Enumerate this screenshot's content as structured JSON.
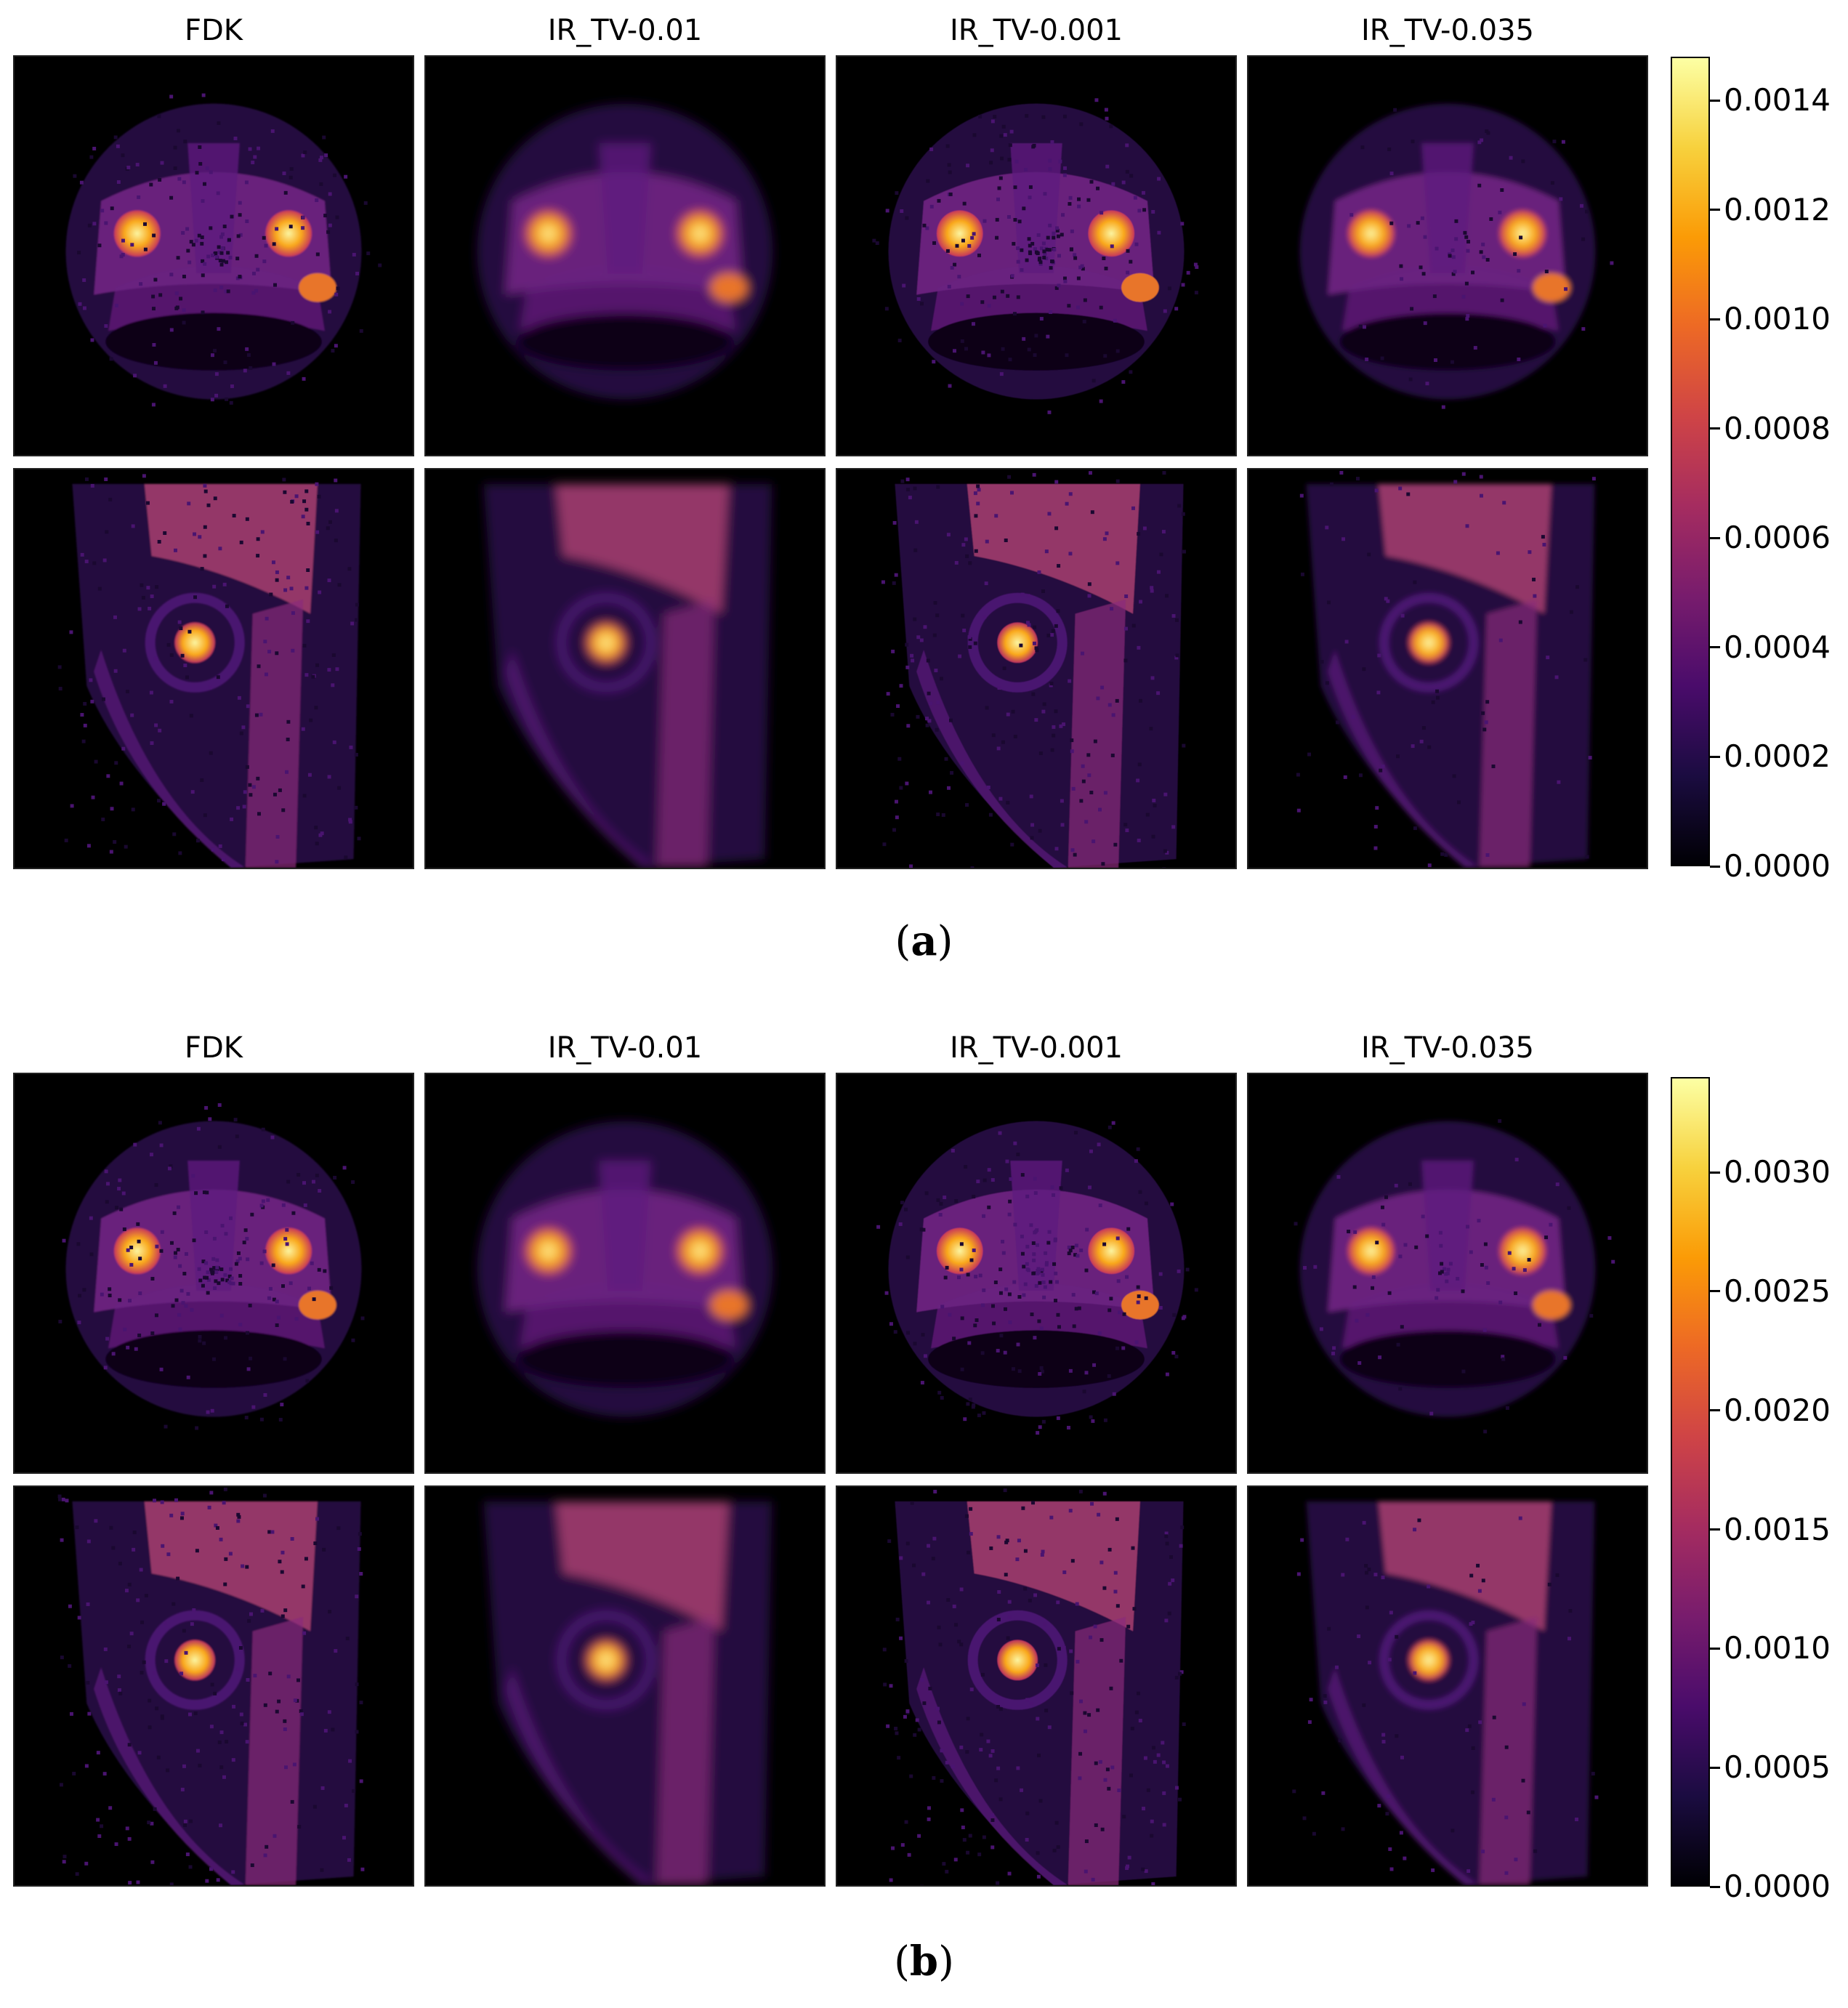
{
  "colormap": [
    "#000004",
    "#1b0c41",
    "#4a0c6b",
    "#781c6d",
    "#a52c60",
    "#cf4446",
    "#ed6925",
    "#fb9b06",
    "#f7d13d",
    "#fcffa4"
  ],
  "panels": [
    {
      "id": "a",
      "caption_letter": "a",
      "columns": [
        "FDK",
        "IR_TV-0.01",
        "IR_TV-0.001",
        "IR_TV-0.035"
      ],
      "colorbar": {
        "min": 0.0,
        "max": 0.00148,
        "ticks": [
          "0.0000",
          "0.0002",
          "0.0004",
          "0.0006",
          "0.0008",
          "0.0010",
          "0.0012",
          "0.0014"
        ]
      }
    },
    {
      "id": "b",
      "caption_letter": "b",
      "columns": [
        "FDK",
        "IR_TV-0.01",
        "IR_TV-0.001",
        "IR_TV-0.035"
      ],
      "colorbar": {
        "min": 0.0,
        "max": 0.0034,
        "ticks": [
          "0.0000",
          "0.0005",
          "0.0010",
          "0.0015",
          "0.0020",
          "0.0025",
          "0.0030"
        ]
      }
    }
  ]
}
